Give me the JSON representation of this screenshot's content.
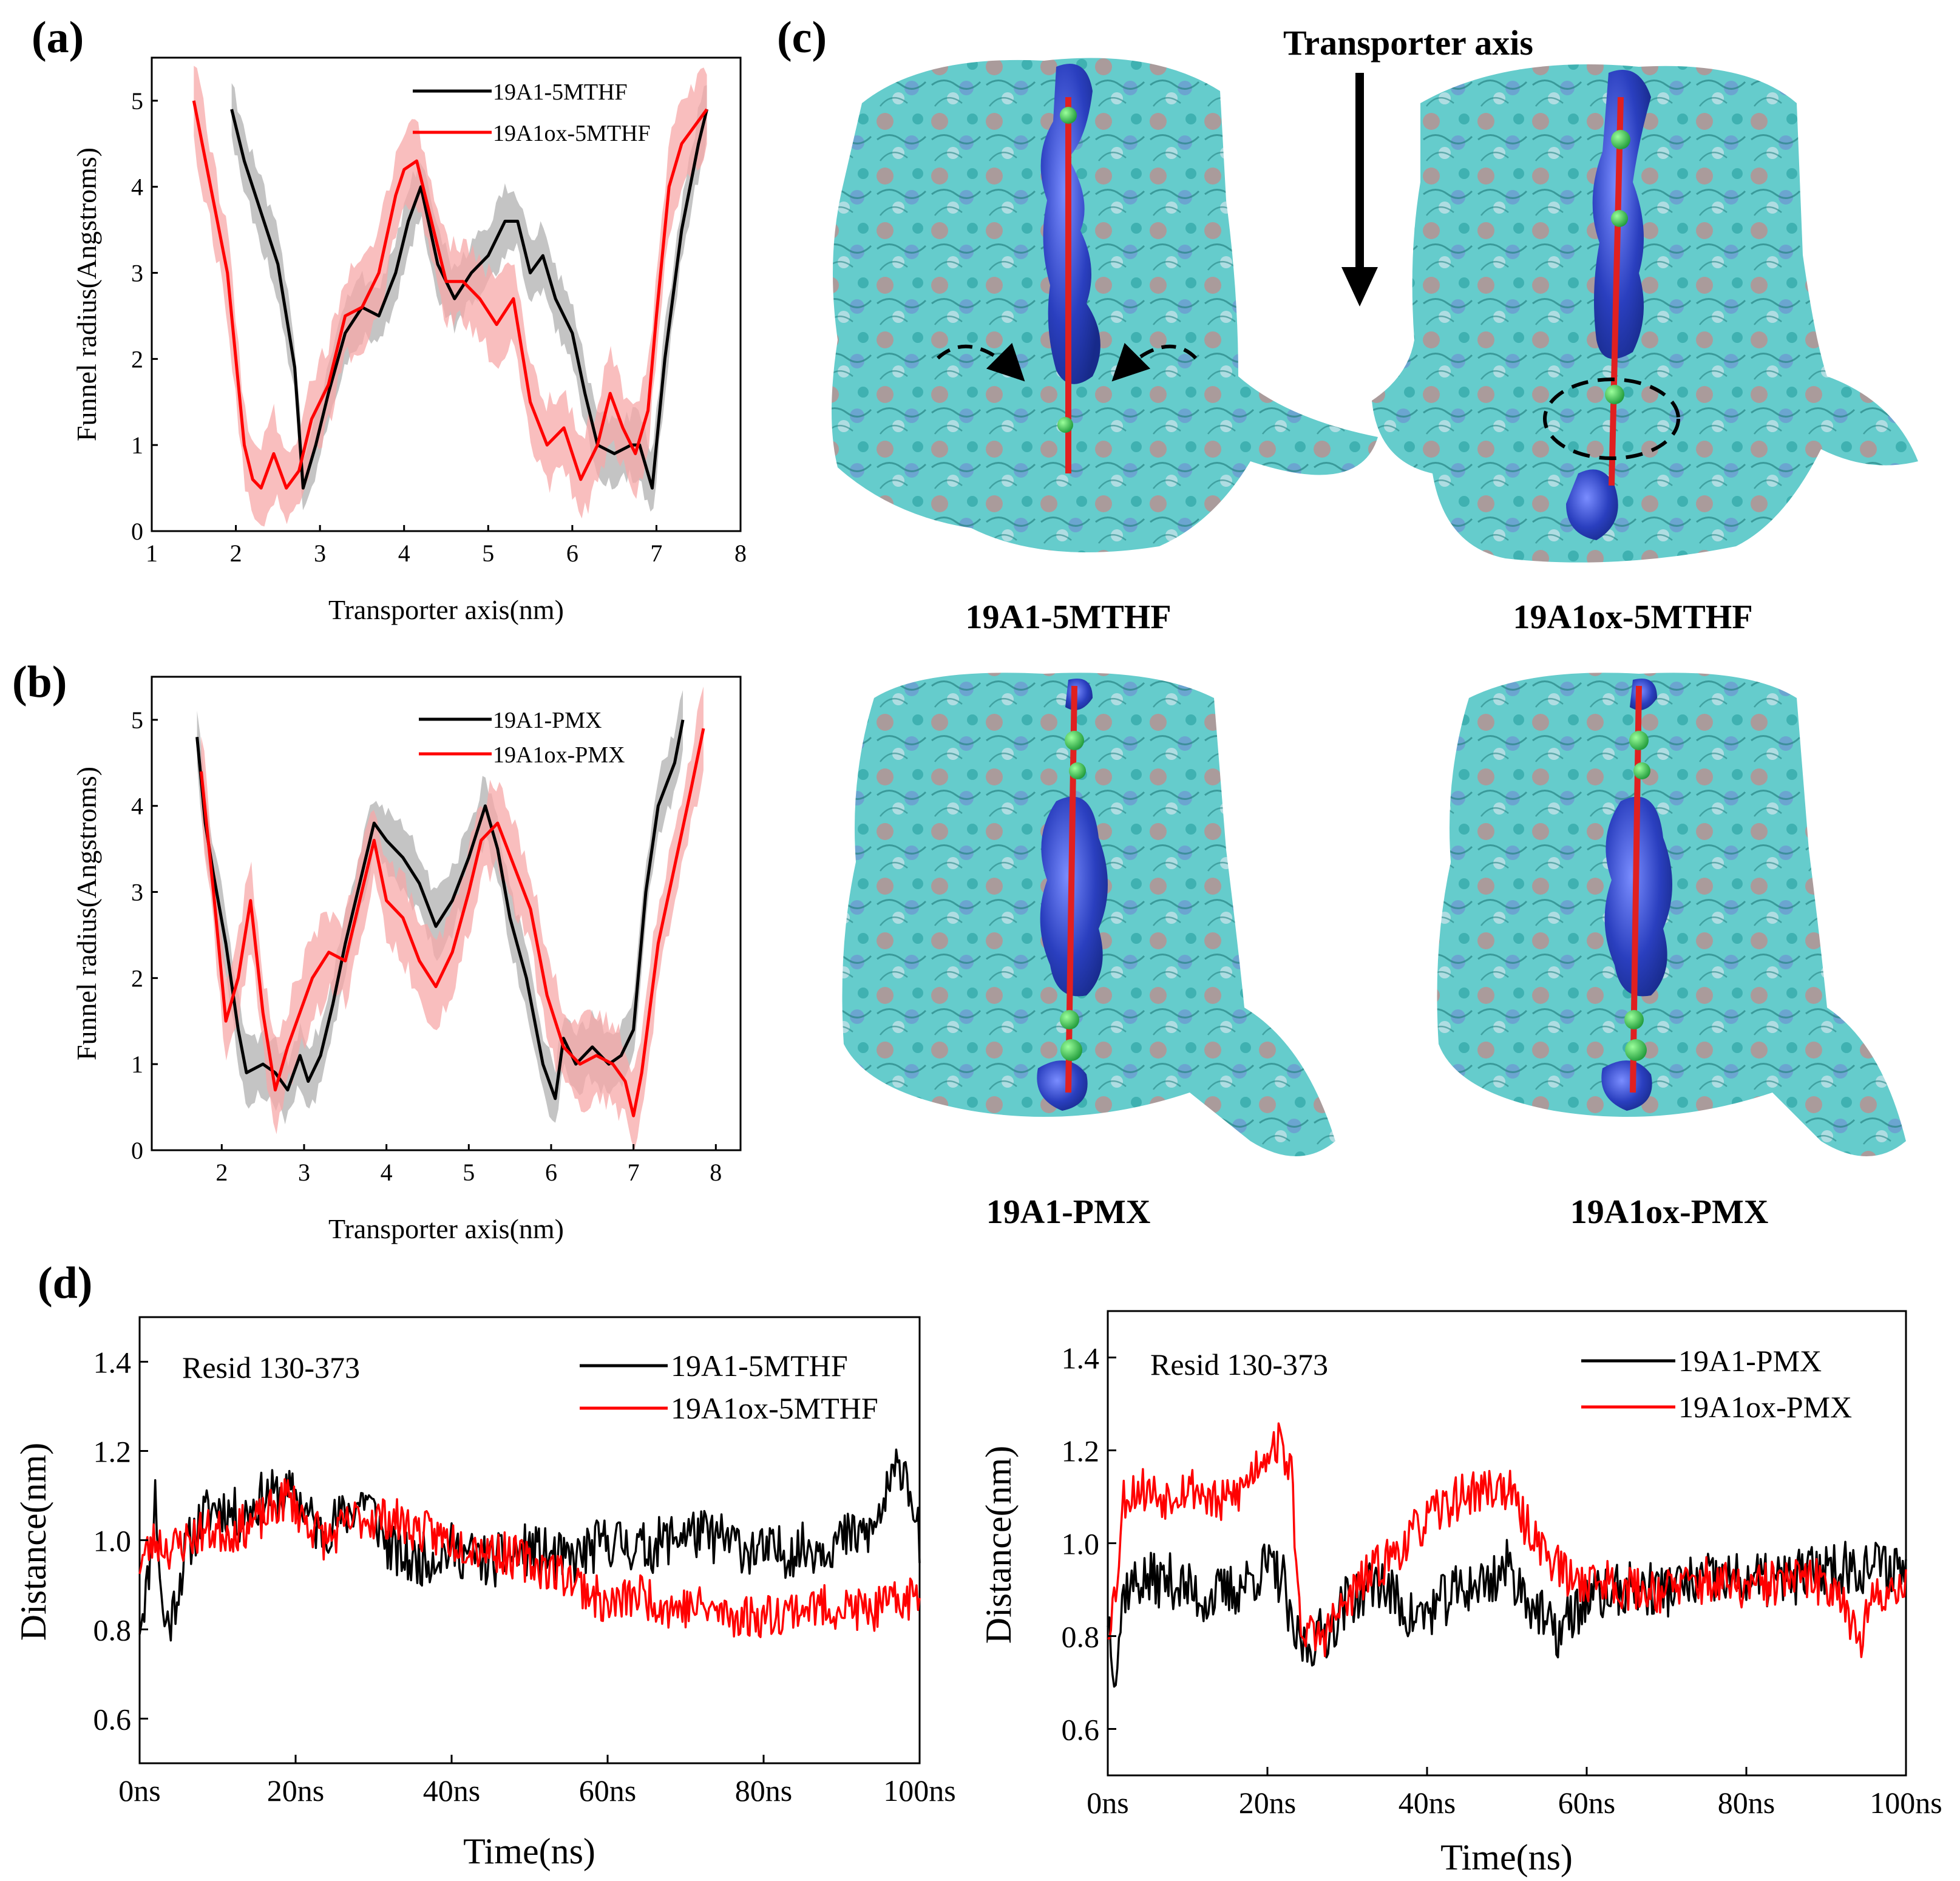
{
  "figure": {
    "panels": {
      "a": "(a)",
      "b": "(b)",
      "c": "(c)",
      "d": "(d)"
    },
    "transporter_axis_title": "Transporter axis",
    "structures": [
      {
        "id": "19A1-5MTHF",
        "label": "19A1-5MTHF",
        "annotation": "arrows"
      },
      {
        "id": "19A1ox-5MTHF",
        "label": "19A1ox-5MTHF",
        "annotation": "dashed-ellipse"
      },
      {
        "id": "19A1-PMX",
        "label": "19A1-PMX",
        "annotation": "none"
      },
      {
        "id": "19A1ox-PMX",
        "label": "19A1ox-PMX",
        "annotation": "none"
      }
    ],
    "colors": {
      "black_series": "#000000",
      "red_series": "#ff0000",
      "black_band": "#b0b0b0",
      "red_band": "#f7a8a8",
      "protein_surface": "#45c4c4",
      "tunnel": "#2a3fbf",
      "tunnel_spheres": "#29c44a"
    }
  },
  "chart_data": [
    {
      "id": "a",
      "type": "line",
      "xlabel": "Transporter axis(nm)",
      "ylabel": "Funnel radius(Angstroms)",
      "xlim": [
        1,
        8
      ],
      "ylim": [
        0,
        5.5
      ],
      "xticks": [
        1,
        2,
        3,
        4,
        5,
        6,
        7,
        8
      ],
      "yticks": [
        0,
        1,
        2,
        3,
        4,
        5
      ],
      "series": [
        {
          "name": "19A1-5MTHF",
          "color": "#000000",
          "band": "#b0b0b0",
          "band_width": 0.45,
          "x": [
            1.95,
            2.1,
            2.3,
            2.5,
            2.7,
            2.8,
            2.95,
            3.1,
            3.3,
            3.5,
            3.7,
            3.9,
            4.05,
            4.2,
            4.4,
            4.6,
            4.8,
            5.0,
            5.2,
            5.35,
            5.5,
            5.65,
            5.8,
            6.0,
            6.15,
            6.3,
            6.5,
            6.7,
            6.8,
            6.95,
            7.1,
            7.3,
            7.5,
            7.6
          ],
          "y": [
            4.9,
            4.3,
            3.7,
            3.1,
            1.9,
            0.5,
            1.0,
            1.6,
            2.3,
            2.6,
            2.5,
            3.0,
            3.6,
            4.0,
            3.1,
            2.7,
            3.0,
            3.2,
            3.6,
            3.6,
            3.0,
            3.2,
            2.7,
            2.3,
            1.6,
            1.0,
            0.9,
            1.0,
            1.0,
            0.5,
            2.0,
            3.5,
            4.5,
            4.9
          ]
        },
        {
          "name": "19A1ox-5MTHF",
          "color": "#ff0000",
          "band": "#f7a8a8",
          "band_width": 0.6,
          "x": [
            1.5,
            1.7,
            1.9,
            2.0,
            2.1,
            2.2,
            2.3,
            2.45,
            2.6,
            2.75,
            2.9,
            3.1,
            3.3,
            3.5,
            3.7,
            3.9,
            4.0,
            4.15,
            4.3,
            4.5,
            4.7,
            4.9,
            5.1,
            5.3,
            5.5,
            5.7,
            5.9,
            6.1,
            6.3,
            6.45,
            6.6,
            6.75,
            6.9,
            7.0,
            7.15,
            7.3,
            7.45,
            7.6
          ],
          "y": [
            5.0,
            4.0,
            3.0,
            2.0,
            1.0,
            0.6,
            0.5,
            0.9,
            0.5,
            0.7,
            1.3,
            1.7,
            2.5,
            2.6,
            3.0,
            3.9,
            4.2,
            4.3,
            3.7,
            2.9,
            2.9,
            2.7,
            2.4,
            2.7,
            1.5,
            1.0,
            1.2,
            0.6,
            1.0,
            1.6,
            1.2,
            0.9,
            1.4,
            2.5,
            4.0,
            4.5,
            4.7,
            4.9
          ]
        }
      ]
    },
    {
      "id": "b",
      "type": "line",
      "xlabel": "Transporter axis(nm)",
      "ylabel": "Funnel radius(Angstroms)",
      "xlim": [
        1.15,
        8.3
      ],
      "ylim": [
        0,
        5.5
      ],
      "xticks": [
        2,
        3,
        4,
        5,
        6,
        7,
        8
      ],
      "yticks": [
        0,
        1,
        2,
        3,
        4,
        5
      ],
      "series": [
        {
          "name": "19A1-PMX",
          "color": "#000000",
          "band": "#b0b0b0",
          "band_width": 0.45,
          "x": [
            1.7,
            1.8,
            1.9,
            2.05,
            2.2,
            2.3,
            2.5,
            2.65,
            2.8,
            2.95,
            3.05,
            3.2,
            3.35,
            3.5,
            3.7,
            3.85,
            4.0,
            4.2,
            4.4,
            4.6,
            4.8,
            5.0,
            5.2,
            5.35,
            5.5,
            5.7,
            5.9,
            6.05,
            6.15,
            6.3,
            6.5,
            6.7,
            6.85,
            7.0,
            7.15,
            7.3,
            7.5,
            7.6
          ],
          "y": [
            4.8,
            3.8,
            3.2,
            2.4,
            1.4,
            0.9,
            1.0,
            0.9,
            0.7,
            1.1,
            0.8,
            1.1,
            1.7,
            2.4,
            3.2,
            3.8,
            3.6,
            3.4,
            3.1,
            2.6,
            2.9,
            3.4,
            4.0,
            3.5,
            2.7,
            2.0,
            1.0,
            0.6,
            1.3,
            1.0,
            1.2,
            1.0,
            1.1,
            1.4,
            3.0,
            4.0,
            4.5,
            5.0
          ]
        },
        {
          "name": "19A1ox-PMX",
          "color": "#ff0000",
          "band": "#f7a8a8",
          "band_width": 0.6,
          "x": [
            1.75,
            1.9,
            2.05,
            2.2,
            2.35,
            2.5,
            2.65,
            2.8,
            2.95,
            3.1,
            3.3,
            3.5,
            3.7,
            3.85,
            4.0,
            4.2,
            4.4,
            4.6,
            4.8,
            5.0,
            5.15,
            5.35,
            5.55,
            5.75,
            5.95,
            6.15,
            6.35,
            6.55,
            6.75,
            6.9,
            7.0,
            7.1,
            7.3,
            7.5,
            7.7,
            7.85
          ],
          "y": [
            4.4,
            3.0,
            1.5,
            2.0,
            2.9,
            1.6,
            0.7,
            1.2,
            1.6,
            2.0,
            2.3,
            2.2,
            3.0,
            3.6,
            2.9,
            2.7,
            2.2,
            1.9,
            2.3,
            3.0,
            3.6,
            3.8,
            3.3,
            2.8,
            1.8,
            1.2,
            1.0,
            1.1,
            1.0,
            0.8,
            0.4,
            0.9,
            2.4,
            3.3,
            4.2,
            4.9
          ]
        }
      ]
    },
    {
      "id": "d-left",
      "type": "line",
      "annotation": "Resid 130-373",
      "xlabel": "Time(ns)",
      "ylabel": "Distance(nm)",
      "xlim": [
        0,
        100
      ],
      "ylim": [
        0.5,
        1.5
      ],
      "xticks": [
        "0ns",
        "20ns",
        "40ns",
        "60ns",
        "80ns",
        "100ns"
      ],
      "yticks": [
        "0.6",
        "0.8",
        "1.0",
        "1.2",
        "1.4"
      ],
      "series": [
        {
          "name": "19A1-5MTHF",
          "color": "#000000",
          "noise": 0.06,
          "seed": 11,
          "x": [
            0,
            1,
            2,
            3,
            4,
            6,
            8,
            10,
            13,
            16,
            20,
            23,
            26,
            29,
            32,
            35,
            40,
            45,
            50,
            55,
            60,
            65,
            70,
            75,
            80,
            85,
            90,
            94,
            97,
            98,
            99,
            100
          ],
          "y": [
            0.82,
            0.9,
            1.1,
            0.82,
            0.82,
            0.98,
            1.05,
            1.08,
            1.05,
            1.1,
            1.1,
            1.02,
            1.05,
            1.1,
            0.98,
            0.95,
            0.98,
            0.95,
            0.98,
            0.95,
            1.0,
            0.98,
            1.02,
            1.0,
            0.97,
            0.98,
            1.0,
            1.02,
            1.15,
            1.18,
            1.1,
            1.0
          ]
        },
        {
          "name": "19A1ox-5MTHF",
          "color": "#ff0000",
          "noise": 0.05,
          "seed": 23,
          "x": [
            0,
            2,
            4,
            8,
            12,
            16,
            19,
            21,
            24,
            28,
            32,
            36,
            40,
            45,
            50,
            55,
            58,
            60,
            64,
            68,
            72,
            76,
            80,
            85,
            90,
            94,
            97,
            100
          ],
          "y": [
            0.95,
            1.0,
            0.98,
            1.02,
            1.02,
            1.05,
            1.1,
            1.05,
            1.0,
            1.05,
            1.05,
            1.02,
            1.0,
            0.98,
            0.95,
            0.92,
            0.88,
            0.85,
            0.88,
            0.85,
            0.85,
            0.83,
            0.83,
            0.85,
            0.85,
            0.84,
            0.86,
            0.88
          ]
        }
      ]
    },
    {
      "id": "d-right",
      "type": "line",
      "annotation": "Resid 130-373",
      "xlabel": "Time(ns)",
      "ylabel": "Distance(nm)",
      "xlim": [
        0,
        100
      ],
      "ylim": [
        0.5,
        1.5
      ],
      "xticks": [
        "0ns",
        "20ns",
        "40ns",
        "60ns",
        "80ns",
        "100ns"
      ],
      "yticks": [
        "0.6",
        "0.8",
        "1.0",
        "1.2",
        "1.4"
      ],
      "series": [
        {
          "name": "19A1-PMX",
          "color": "#000000",
          "noise": 0.06,
          "seed": 37,
          "x": [
            0,
            1,
            2,
            4,
            8,
            12,
            16,
            20,
            22,
            23,
            25,
            28,
            30,
            34,
            38,
            40,
            44,
            48,
            50,
            54,
            56,
            60,
            65,
            70,
            75,
            80,
            85,
            90,
            95,
            100
          ],
          "y": [
            0.85,
            0.72,
            0.9,
            0.92,
            0.92,
            0.88,
            0.9,
            0.95,
            0.92,
            0.8,
            0.78,
            0.82,
            0.88,
            0.92,
            0.84,
            0.85,
            0.9,
            0.92,
            0.95,
            0.85,
            0.8,
            0.88,
            0.9,
            0.9,
            0.92,
            0.92,
            0.92,
            0.95,
            0.95,
            0.95
          ]
        },
        {
          "name": "19A1ox-PMX",
          "color": "#ff0000",
          "noise": 0.05,
          "seed": 53,
          "x": [
            0,
            1,
            2,
            4,
            7,
            9,
            11,
            14,
            17,
            19,
            21,
            22,
            23,
            24,
            25,
            27,
            29,
            32,
            36,
            40,
            44,
            48,
            50,
            52,
            55,
            58,
            62,
            66,
            70,
            75,
            80,
            85,
            88,
            92,
            94,
            96,
            100
          ],
          "y": [
            0.82,
            0.9,
            1.1,
            1.12,
            1.1,
            1.12,
            1.12,
            1.08,
            1.12,
            1.18,
            1.22,
            1.2,
            1.15,
            0.85,
            0.8,
            0.8,
            0.85,
            0.92,
            0.98,
            1.05,
            1.1,
            1.12,
            1.12,
            1.05,
            0.98,
            0.92,
            0.92,
            0.9,
            0.9,
            0.92,
            0.9,
            0.92,
            0.92,
            0.9,
            0.78,
            0.88,
            0.92
          ]
        }
      ]
    }
  ]
}
